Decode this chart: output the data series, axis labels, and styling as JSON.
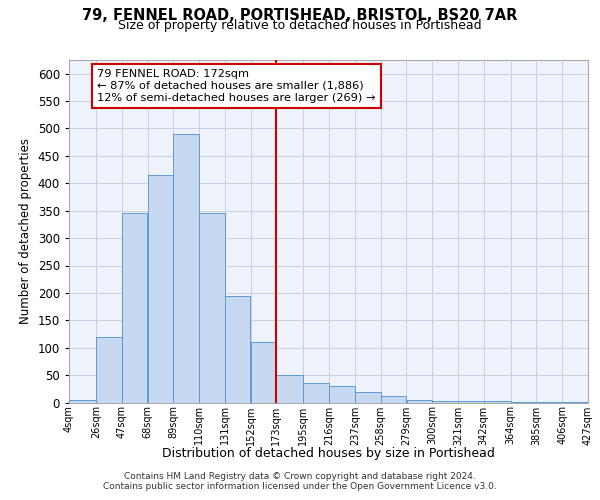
{
  "title_line1": "79, FENNEL ROAD, PORTISHEAD, BRISTOL, BS20 7AR",
  "title_line2": "Size of property relative to detached houses in Portishead",
  "xlabel": "Distribution of detached houses by size in Portishead",
  "ylabel": "Number of detached properties",
  "bar_color": "#c6d9f0",
  "bar_edge_color": "#5b9bd5",
  "background_color": "#eef2fa",
  "grid_color": "#c8d0e0",
  "vline_color": "#cc0000",
  "vline_x": 173,
  "annotation_text": "79 FENNEL ROAD: 172sqm\n← 87% of detached houses are smaller (1,886)\n12% of semi-detached houses are larger (269) →",
  "annotation_box_color": "#cc0000",
  "footer_line1": "Contains HM Land Registry data © Crown copyright and database right 2024.",
  "footer_line2": "Contains public sector information licensed under the Open Government Licence v3.0.",
  "bin_edges": [
    4,
    26,
    47,
    68,
    89,
    110,
    131,
    152,
    173,
    195,
    216,
    237,
    258,
    279,
    300,
    321,
    342,
    364,
    385,
    406,
    427
  ],
  "bin_labels": [
    "4sqm",
    "26sqm",
    "47sqm",
    "68sqm",
    "89sqm",
    "110sqm",
    "131sqm",
    "152sqm",
    "173sqm",
    "195sqm",
    "216sqm",
    "237sqm",
    "258sqm",
    "279sqm",
    "300sqm",
    "321sqm",
    "342sqm",
    "364sqm",
    "385sqm",
    "406sqm",
    "427sqm"
  ],
  "counts": [
    5,
    120,
    345,
    415,
    490,
    345,
    195,
    110,
    50,
    35,
    30,
    20,
    12,
    5,
    3,
    3,
    2,
    1,
    1,
    1
  ],
  "ylim": [
    0,
    625
  ],
  "yticks": [
    0,
    50,
    100,
    150,
    200,
    250,
    300,
    350,
    400,
    450,
    500,
    550,
    600
  ]
}
